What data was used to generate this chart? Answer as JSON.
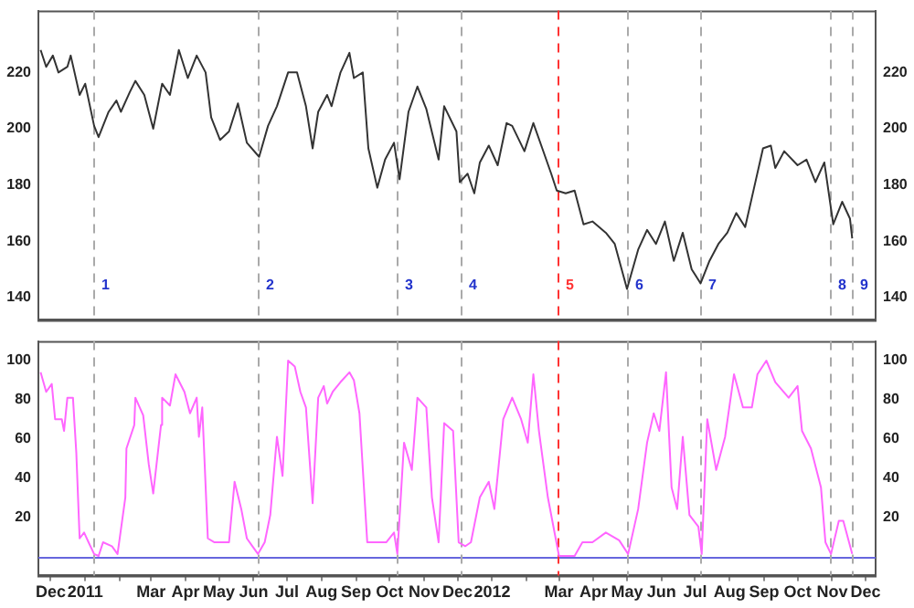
{
  "chart_data": [
    {
      "type": "line",
      "tick_labels": "y",
      "xlim": [
        "2010-12-01",
        "2012-12-21"
      ],
      "ylim": [
        132,
        242
      ],
      "yticks": [
        140,
        160,
        180,
        200,
        220
      ],
      "y2lim": [
        132,
        242
      ],
      "y2ticks": [
        140,
        160,
        180,
        200,
        220
      ],
      "x": [
        "2010-12-03",
        "2010-12-08",
        "2010-12-14",
        "2010-12-19",
        "2010-12-27",
        "2010-12-30",
        "2011-01-07",
        "2011-01-12",
        "2011-01-20",
        "2011-01-24",
        "2011-02-02",
        "2011-02-09",
        "2011-02-13",
        "2011-02-21",
        "2011-02-26",
        "2011-03-06",
        "2011-03-14",
        "2011-03-22",
        "2011-03-29",
        "2011-04-06",
        "2011-04-14",
        "2011-04-22",
        "2011-04-30",
        "2011-05-05",
        "2011-05-13",
        "2011-05-21",
        "2011-05-29",
        "2011-06-06",
        "2011-06-17",
        "2011-06-25",
        "2011-07-03",
        "2011-07-13",
        "2011-07-21",
        "2011-07-29",
        "2011-08-04",
        "2011-08-09",
        "2011-08-17",
        "2011-08-21",
        "2011-08-29",
        "2011-09-06",
        "2011-09-10",
        "2011-09-18",
        "2011-09-23",
        "2011-10-01",
        "2011-10-08",
        "2011-10-16",
        "2011-10-21",
        "2011-10-29",
        "2011-11-06",
        "2011-11-14",
        "2011-11-25",
        "2011-11-30",
        "2011-12-11",
        "2011-12-14",
        "2011-12-21",
        "2011-12-27",
        "2012-01-01",
        "2012-01-09",
        "2012-01-17",
        "2012-01-25",
        "2012-01-30",
        "2012-02-10",
        "2012-02-18",
        "2012-02-26",
        "2012-03-05",
        "2012-03-10",
        "2012-03-18",
        "2012-03-26",
        "2012-04-03",
        "2012-04-11",
        "2012-04-23",
        "2012-05-01",
        "2012-05-12",
        "2012-05-22",
        "2012-05-30",
        "2012-06-07",
        "2012-06-15",
        "2012-06-23",
        "2012-07-01",
        "2012-07-09",
        "2012-07-17",
        "2012-07-25",
        "2012-08-02",
        "2012-08-10",
        "2012-08-18",
        "2012-08-26",
        "2012-09-03",
        "2012-09-11",
        "2012-09-18",
        "2012-09-22",
        "2012-09-30",
        "2012-10-12",
        "2012-10-20",
        "2012-10-28",
        "2012-11-05",
        "2012-11-13",
        "2012-11-21",
        "2012-11-28",
        "2012-11-30"
      ],
      "series": [
        {
          "color": "#333333",
          "values": [
            228,
            222,
            226,
            220,
            222,
            226,
            212,
            216,
            201,
            197,
            206,
            210,
            206,
            213,
            217,
            212,
            200,
            216,
            212,
            228,
            218,
            226,
            220,
            204,
            196,
            199,
            209,
            195,
            190,
            201,
            208,
            220,
            220,
            208,
            193,
            206,
            212,
            208,
            220,
            227,
            218,
            220,
            193,
            179,
            189,
            195,
            182,
            206,
            215,
            207,
            189,
            208,
            199,
            181,
            184,
            177,
            188,
            194,
            187,
            202,
            201,
            192,
            202,
            193,
            184,
            178,
            177,
            178,
            166,
            167,
            163,
            159,
            143,
            157,
            164,
            159,
            167,
            153,
            163,
            150,
            145,
            153,
            159,
            163,
            170,
            165,
            179,
            193,
            194,
            186,
            192,
            187,
            189,
            181,
            188,
            166,
            174,
            168,
            161
          ]
        }
      ],
      "ref_lines": [
        {
          "axis": "x",
          "value": "2011-01-20",
          "label": "1",
          "color": "#aaaaaa",
          "line_style": "dashed"
        },
        {
          "axis": "x",
          "value": "2011-06-15",
          "label": "2",
          "color": "#aaaaaa",
          "line_style": "dashed"
        },
        {
          "axis": "x",
          "value": "2011-10-19",
          "label": "3",
          "color": "#aaaaaa",
          "line_style": "dashed"
        },
        {
          "axis": "x",
          "value": "2011-12-14",
          "label": "4",
          "color": "#aaaaaa",
          "line_style": "dashed"
        },
        {
          "axis": "x",
          "value": "2012-03-10",
          "label": "5",
          "color": "#ff3333",
          "line_style": "dashed"
        },
        {
          "axis": "x",
          "value": "2012-05-12",
          "label": "6",
          "color": "#aaaaaa",
          "line_style": "dashed"
        },
        {
          "axis": "x",
          "value": "2012-07-17",
          "label": "7",
          "color": "#aaaaaa",
          "line_style": "dashed"
        },
        {
          "axis": "x",
          "value": "2012-11-10",
          "label": "8",
          "color": "#aaaaaa",
          "line_style": "dashed"
        },
        {
          "axis": "x",
          "value": "2012-11-30",
          "label": "9",
          "color": "#aaaaaa",
          "line_style": "dashed"
        }
      ]
    },
    {
      "type": "line",
      "xlim": [
        "2010-12-01",
        "2012-12-21"
      ],
      "ylim": [
        -10,
        110
      ],
      "yticks": [
        20,
        40,
        60,
        80,
        100
      ],
      "y2lim": [
        -10,
        110
      ],
      "y2ticks": [
        20,
        40,
        60,
        80,
        100
      ],
      "xticks": [
        {
          "value": "2010-12-12",
          "label": "Dec"
        },
        {
          "value": "2011-01-12",
          "label": "2011"
        },
        {
          "value": "2011-02-12",
          "label": null
        },
        {
          "value": "2011-03-12",
          "label": "Mar"
        },
        {
          "value": "2011-04-12",
          "label": "Apr"
        },
        {
          "value": "2011-05-12",
          "label": "May"
        },
        {
          "value": "2011-06-12",
          "label": "Jun"
        },
        {
          "value": "2011-07-12",
          "label": "Jul"
        },
        {
          "value": "2011-08-12",
          "label": "Aug"
        },
        {
          "value": "2011-09-12",
          "label": "Sep"
        },
        {
          "value": "2011-10-12",
          "label": "Oct"
        },
        {
          "value": "2011-11-12",
          "label": "Nov"
        },
        {
          "value": "2011-12-12",
          "label": "Dec"
        },
        {
          "value": "2012-01-12",
          "label": "2012"
        },
        {
          "value": "2012-02-12",
          "label": null
        },
        {
          "value": "2012-03-12",
          "label": "Mar"
        },
        {
          "value": "2012-04-12",
          "label": "Apr"
        },
        {
          "value": "2012-05-12",
          "label": "May"
        },
        {
          "value": "2012-06-12",
          "label": "Jun"
        },
        {
          "value": "2012-07-12",
          "label": "Jul"
        },
        {
          "value": "2012-08-12",
          "label": "Aug"
        },
        {
          "value": "2012-09-12",
          "label": "Sep"
        },
        {
          "value": "2012-10-12",
          "label": "Oct"
        },
        {
          "value": "2012-11-12",
          "label": "Nov"
        },
        {
          "value": "2012-12-12",
          "label": "Dec"
        }
      ],
      "x": [
        "2010-12-03",
        "2010-12-08",
        "2010-12-13",
        "2010-12-16",
        "2010-12-22",
        "2010-12-24",
        "2010-12-27",
        "2011-01-01",
        "2011-01-04",
        "2011-01-07",
        "2011-01-11",
        "2011-01-15",
        "2011-01-20",
        "2011-01-24",
        "2011-01-28",
        "2011-02-05",
        "2011-02-10",
        "2011-02-17",
        "2011-02-18",
        "2011-02-25",
        "2011-02-26",
        "2011-03-05",
        "2011-03-10",
        "2011-03-14",
        "2011-03-21",
        "2011-03-22",
        "2011-03-29",
        "2011-04-03",
        "2011-04-11",
        "2011-04-16",
        "2011-04-22",
        "2011-04-24",
        "2011-04-27",
        "2011-05-02",
        "2011-05-08",
        "2011-05-16",
        "2011-05-21",
        "2011-05-26",
        "2011-06-01",
        "2011-06-06",
        "2011-06-11",
        "2011-06-16",
        "2011-06-22",
        "2011-06-27",
        "2011-07-03",
        "2011-07-08",
        "2011-07-13",
        "2011-07-19",
        "2011-07-24",
        "2011-07-29",
        "2011-08-04",
        "2011-08-09",
        "2011-08-14",
        "2011-08-17",
        "2011-08-22",
        "2011-08-29",
        "2011-09-06",
        "2011-09-10",
        "2011-09-15",
        "2011-09-22",
        "2011-10-01",
        "2011-10-09",
        "2011-10-16",
        "2011-10-19",
        "2011-10-25",
        "2011-11-01",
        "2011-11-06",
        "2011-11-14",
        "2011-11-19",
        "2011-11-25",
        "2011-11-30",
        "2011-12-08",
        "2011-12-13",
        "2011-12-19",
        "2011-12-24",
        "2012-01-01",
        "2012-01-09",
        "2012-01-14",
        "2012-01-22",
        "2012-01-30",
        "2012-02-07",
        "2012-02-13",
        "2012-02-18",
        "2012-02-23",
        "2012-03-02",
        "2012-03-09",
        "2012-03-12",
        "2012-03-26",
        "2012-04-02",
        "2012-04-11",
        "2012-04-23",
        "2012-05-05",
        "2012-05-13",
        "2012-05-22",
        "2012-05-30",
        "2012-06-05",
        "2012-06-10",
        "2012-06-16",
        "2012-06-21",
        "2012-06-26",
        "2012-07-01",
        "2012-07-07",
        "2012-07-15",
        "2012-07-18",
        "2012-07-23",
        "2012-07-31",
        "2012-08-08",
        "2012-08-16",
        "2012-08-24",
        "2012-09-01",
        "2012-09-06",
        "2012-09-14",
        "2012-09-22",
        "2012-10-04",
        "2012-10-12",
        "2012-10-16",
        "2012-10-24",
        "2012-11-02",
        "2012-11-06",
        "2012-11-11",
        "2012-11-18",
        "2012-11-22",
        "2012-11-30"
      ],
      "series": [
        {
          "color": "#ff66ff",
          "values": [
            94,
            84,
            88,
            70,
            70,
            64,
            81,
            81,
            53,
            9,
            12,
            7,
            1,
            0,
            7,
            5,
            1,
            30,
            55,
            67,
            81,
            72,
            47,
            32,
            67,
            81,
            77,
            93,
            84,
            73,
            81,
            61,
            76,
            9,
            7,
            7,
            7,
            38,
            24,
            9,
            5,
            1,
            7,
            21,
            61,
            41,
            100,
            97,
            84,
            76,
            27,
            81,
            87,
            78,
            84,
            89,
            94,
            90,
            73,
            7,
            7,
            7,
            12,
            1,
            58,
            44,
            81,
            76,
            30,
            7,
            68,
            64,
            7,
            5,
            7,
            30,
            38,
            24,
            70,
            81,
            70,
            58,
            93,
            64,
            30,
            9,
            0,
            0,
            7,
            7,
            12,
            8,
            1,
            24,
            58,
            73,
            64,
            94,
            35,
            24,
            61,
            21,
            15,
            1,
            70,
            44,
            61,
            93,
            76,
            76,
            93,
            100,
            89,
            81,
            87,
            64,
            55,
            35,
            7,
            1,
            18,
            18,
            1
          ]
        }
      ],
      "ref_lines": [
        {
          "axis": "y",
          "value": 0,
          "color": "#6666dd",
          "line_style": "solid"
        },
        {
          "axis": "x",
          "value": "2011-01-20",
          "color": "#aaaaaa",
          "line_style": "dashed"
        },
        {
          "axis": "x",
          "value": "2011-06-15",
          "color": "#aaaaaa",
          "line_style": "dashed"
        },
        {
          "axis": "x",
          "value": "2011-10-19",
          "color": "#aaaaaa",
          "line_style": "dashed"
        },
        {
          "axis": "x",
          "value": "2011-12-14",
          "color": "#aaaaaa",
          "line_style": "dashed"
        },
        {
          "axis": "x",
          "value": "2012-03-10",
          "color": "#ff3333",
          "line_style": "dashed"
        },
        {
          "axis": "x",
          "value": "2012-05-12",
          "color": "#aaaaaa",
          "line_style": "dashed"
        },
        {
          "axis": "x",
          "value": "2012-07-17",
          "color": "#aaaaaa",
          "line_style": "dashed"
        },
        {
          "axis": "x",
          "value": "2012-11-10",
          "color": "#aaaaaa",
          "line_style": "dashed"
        },
        {
          "axis": "x",
          "value": "2012-11-30",
          "color": "#aaaaaa",
          "line_style": "dashed"
        }
      ]
    }
  ]
}
